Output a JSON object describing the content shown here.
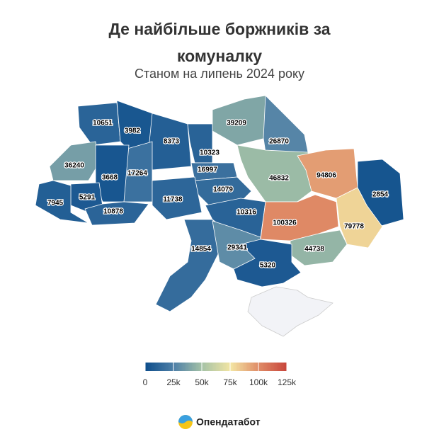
{
  "map": {
    "title": "Де найбільше боржників за комуналку",
    "subtitle": "Станом на липень 2024 року",
    "values": [
      10651,
      3982,
      8373,
      39209,
      26870,
      36240,
      10323,
      16997,
      17264,
      3668,
      46832,
      94806,
      2854,
      14079,
      5291,
      7945,
      11738,
      10878,
      10316,
      100326,
      79778,
      14854,
      29341,
      44738,
      5320
    ],
    "colorbar": {
      "lim": [
        0,
        125000
      ],
      "ticks": [
        0,
        {
          "value": 25000,
          "label": "25k"
        },
        {
          "value": 50000,
          "label": "50k"
        },
        {
          "value": 75000,
          "label": "75k"
        },
        {
          "value": 100000,
          "label": "100k"
        },
        {
          "value": 125000,
          "label": "125k"
        }
      ],
      "colors": [
        "#0f4f8c",
        "#4f80a7",
        "#a6c3a6",
        "#f3e5a3",
        "#df8a66",
        "#c7433a"
      ]
    },
    "no_data_color": "#f2f3f7",
    "brand": "Опендатабот"
  }
}
